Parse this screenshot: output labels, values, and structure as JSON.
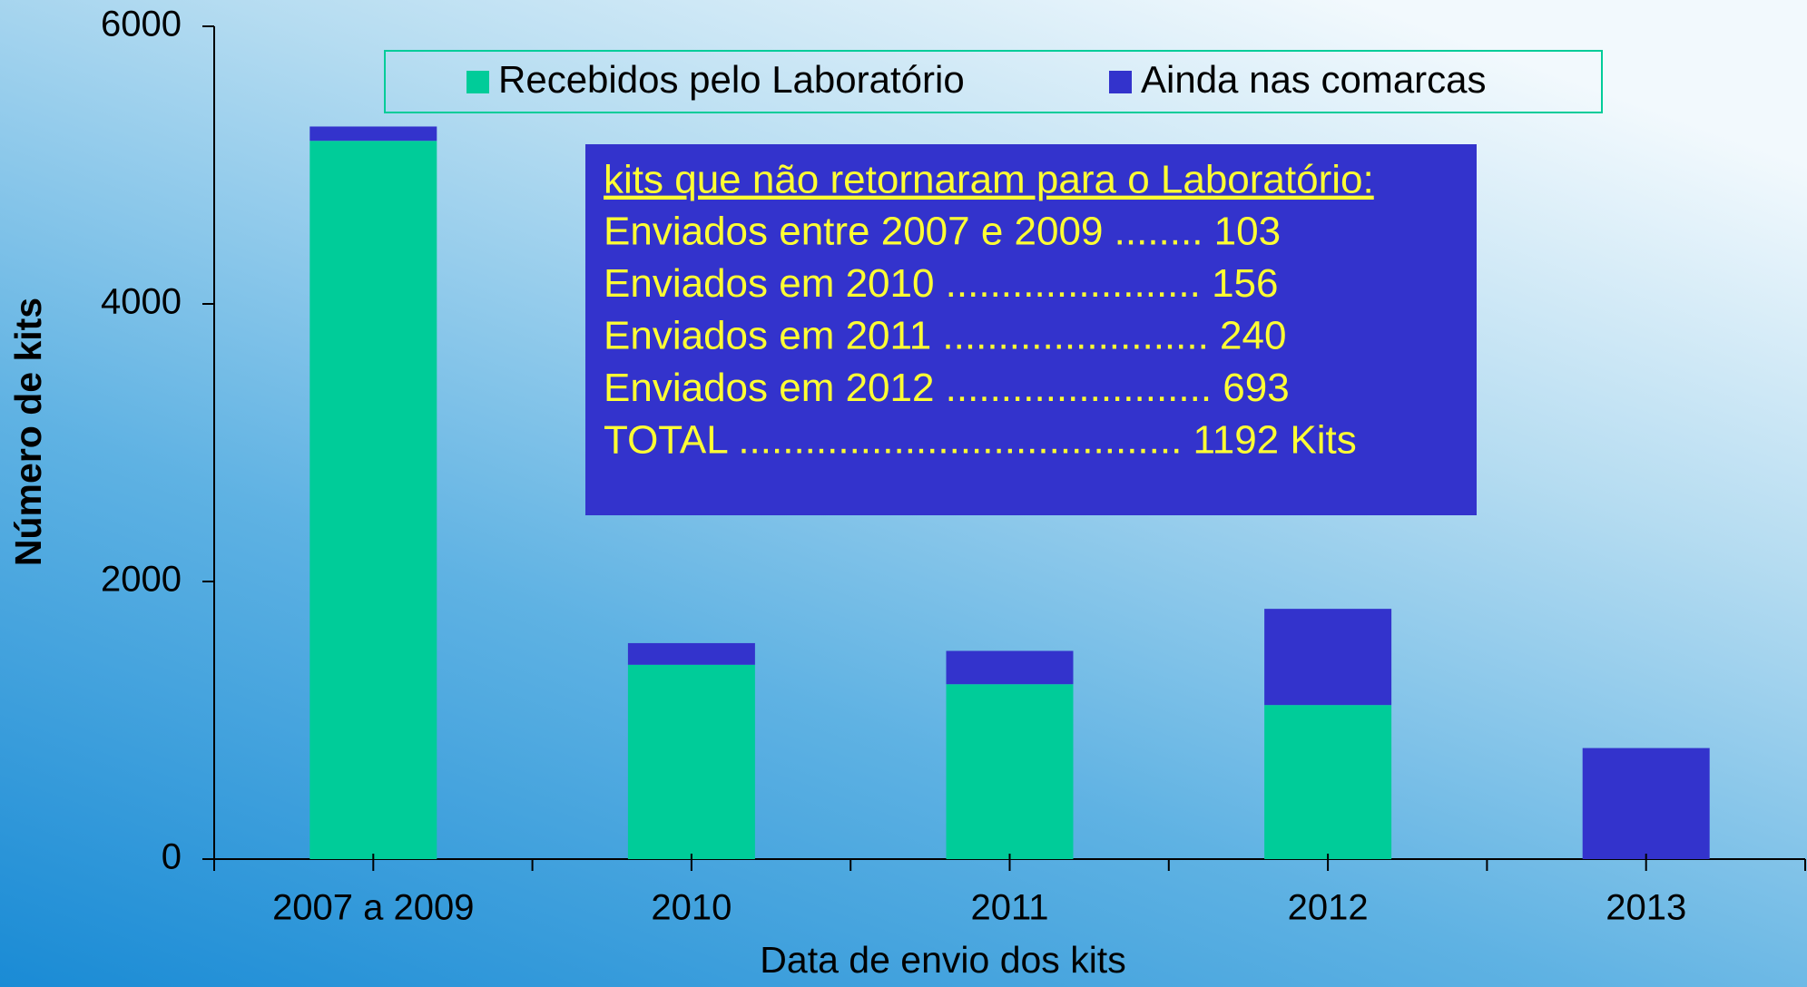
{
  "chart_data": {
    "type": "stacked-bar",
    "x_label": "Data de envio dos kits",
    "y_label": "Número de kits",
    "categories": [
      "2007 a 2009",
      "2010",
      "2011",
      "2012",
      "2013"
    ],
    "series": [
      {
        "name": "Recebidos pelo Laboratório",
        "color": "#00cc99",
        "values": [
          5175,
          1400,
          1260,
          1110,
          0
        ]
      },
      {
        "name": "Ainda nas comarcas",
        "color": "#3333cc",
        "values": [
          103,
          156,
          240,
          693,
          800
        ]
      }
    ],
    "ylim": [
      0,
      6000
    ],
    "yticks": [
      0,
      2000,
      4000,
      6000
    ],
    "legend": "top",
    "annotation": {
      "title": "kits que não retornaram para o Laboratório:",
      "lines": [
        "Enviados entre 2007 e 2009 ........ 103",
        "Enviados em 2010 ....................... 156",
        "Enviados em 2011 ........................ 240",
        "Enviados em 2012 ........................ 693",
        "TOTAL ........................................ 1192 Kits"
      ],
      "box_color": "#3333cc",
      "text_color": "#ffff33"
    }
  }
}
